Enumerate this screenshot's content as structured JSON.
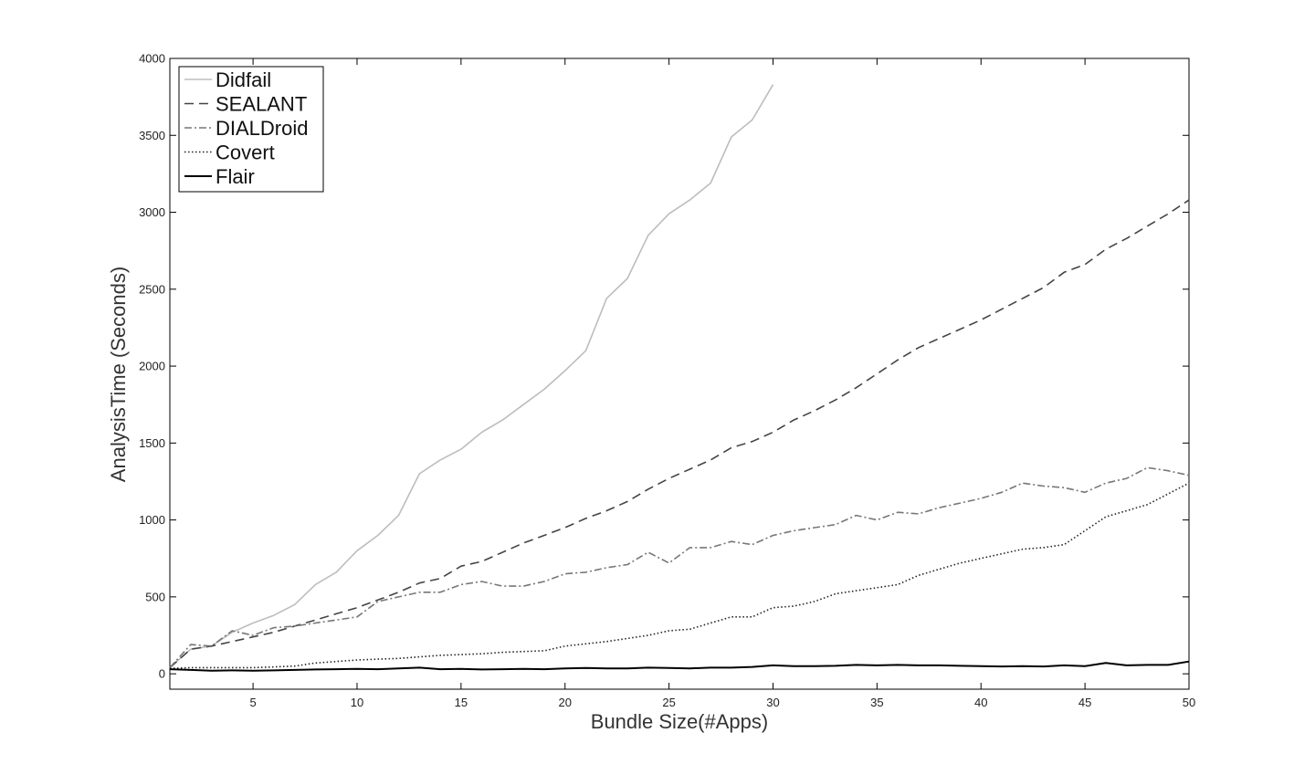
{
  "chart_data": {
    "type": "line",
    "title": "",
    "xlabel": "Bundle Size(#Apps)",
    "ylabel": "AnalysisTime (Seconds)",
    "xlim": [
      1,
      50
    ],
    "ylim": [
      -100,
      4000
    ],
    "xticks": [
      5,
      10,
      15,
      20,
      25,
      30,
      35,
      40,
      45,
      50
    ],
    "yticks": [
      0,
      500,
      1000,
      1500,
      2000,
      2500,
      3000,
      3500,
      4000
    ],
    "grid": false,
    "legend_position": "top-left",
    "series": [
      {
        "name": "Didfail",
        "color": "#bdbdbd",
        "dash": "solid",
        "x": [
          1,
          2,
          3,
          4,
          5,
          6,
          7,
          8,
          9,
          10,
          11,
          12,
          13,
          14,
          15,
          16,
          17,
          18,
          19,
          20,
          21,
          22,
          23,
          24,
          25,
          26,
          27,
          28,
          29,
          30
        ],
        "y": [
          40,
          160,
          180,
          270,
          330,
          380,
          450,
          580,
          660,
          800,
          900,
          1030,
          1300,
          1390,
          1460,
          1570,
          1650,
          1750,
          1850,
          1970,
          2100,
          2440,
          2570,
          2850,
          2990,
          3080,
          3190,
          3490,
          3600,
          3830
        ]
      },
      {
        "name": "SEALANT",
        "color": "#444444",
        "dash": "dashed",
        "x": [
          1,
          2,
          3,
          4,
          5,
          6,
          7,
          8,
          9,
          10,
          11,
          12,
          13,
          14,
          15,
          16,
          17,
          18,
          19,
          20,
          21,
          22,
          23,
          24,
          25,
          26,
          27,
          28,
          29,
          30,
          31,
          32,
          33,
          34,
          35,
          36,
          37,
          38,
          39,
          40,
          41,
          42,
          43,
          44,
          45,
          46,
          47,
          48,
          49,
          50
        ],
        "y": [
          40,
          160,
          180,
          210,
          240,
          270,
          310,
          350,
          390,
          430,
          480,
          530,
          590,
          620,
          700,
          730,
          790,
          850,
          900,
          950,
          1010,
          1060,
          1120,
          1200,
          1270,
          1330,
          1390,
          1470,
          1510,
          1570,
          1650,
          1710,
          1780,
          1860,
          1950,
          2040,
          2120,
          2180,
          2240,
          2300,
          2370,
          2440,
          2510,
          2610,
          2660,
          2760,
          2830,
          2910,
          2990,
          3080
        ]
      },
      {
        "name": "DIALDroid",
        "color": "#777777",
        "dash": "dashdot",
        "x": [
          1,
          2,
          3,
          4,
          5,
          6,
          7,
          8,
          9,
          10,
          11,
          12,
          13,
          14,
          15,
          16,
          17,
          18,
          19,
          20,
          21,
          22,
          23,
          24,
          25,
          26,
          27,
          28,
          29,
          30,
          31,
          32,
          33,
          34,
          35,
          36,
          37,
          38,
          39,
          40,
          41,
          42,
          43,
          44,
          45,
          46,
          47,
          48,
          49,
          50
        ],
        "y": [
          40,
          190,
          180,
          280,
          250,
          300,
          310,
          330,
          350,
          370,
          470,
          500,
          530,
          530,
          580,
          600,
          570,
          570,
          600,
          650,
          660,
          690,
          710,
          790,
          720,
          820,
          820,
          860,
          840,
          900,
          930,
          950,
          970,
          1030,
          1000,
          1050,
          1040,
          1080,
          1110,
          1140,
          1180,
          1240,
          1220,
          1210,
          1180,
          1240,
          1270,
          1340,
          1320,
          1290
        ]
      },
      {
        "name": "Covert",
        "color": "#222222",
        "dash": "dotted",
        "x": [
          1,
          2,
          3,
          4,
          5,
          6,
          7,
          8,
          9,
          10,
          11,
          12,
          13,
          14,
          15,
          16,
          17,
          18,
          19,
          20,
          21,
          22,
          23,
          24,
          25,
          26,
          27,
          28,
          29,
          30,
          31,
          32,
          33,
          34,
          35,
          36,
          37,
          38,
          39,
          40,
          41,
          42,
          43,
          44,
          45,
          46,
          47,
          48,
          49,
          50
        ],
        "y": [
          35,
          40,
          40,
          40,
          40,
          45,
          50,
          70,
          80,
          90,
          95,
          100,
          110,
          120,
          125,
          130,
          140,
          145,
          150,
          180,
          195,
          210,
          230,
          250,
          280,
          290,
          330,
          370,
          370,
          430,
          440,
          470,
          520,
          540,
          560,
          580,
          640,
          680,
          720,
          750,
          780,
          810,
          820,
          840,
          930,
          1020,
          1060,
          1100,
          1170,
          1240
        ]
      },
      {
        "name": "Flair",
        "color": "#000000",
        "dash": "solid",
        "x": [
          1,
          2,
          3,
          4,
          5,
          6,
          7,
          8,
          9,
          10,
          11,
          12,
          13,
          14,
          15,
          16,
          17,
          18,
          19,
          20,
          21,
          22,
          23,
          24,
          25,
          26,
          27,
          28,
          29,
          30,
          31,
          32,
          33,
          34,
          35,
          36,
          37,
          38,
          39,
          40,
          41,
          42,
          43,
          44,
          45,
          46,
          47,
          48,
          49,
          50
        ],
        "y": [
          30,
          25,
          20,
          22,
          20,
          22,
          25,
          28,
          30,
          32,
          30,
          35,
          40,
          30,
          32,
          28,
          30,
          32,
          30,
          35,
          38,
          35,
          35,
          40,
          38,
          35,
          40,
          40,
          45,
          55,
          50,
          50,
          52,
          58,
          55,
          58,
          55,
          55,
          52,
          50,
          48,
          50,
          48,
          55,
          50,
          70,
          55,
          58,
          58,
          80
        ]
      }
    ]
  }
}
